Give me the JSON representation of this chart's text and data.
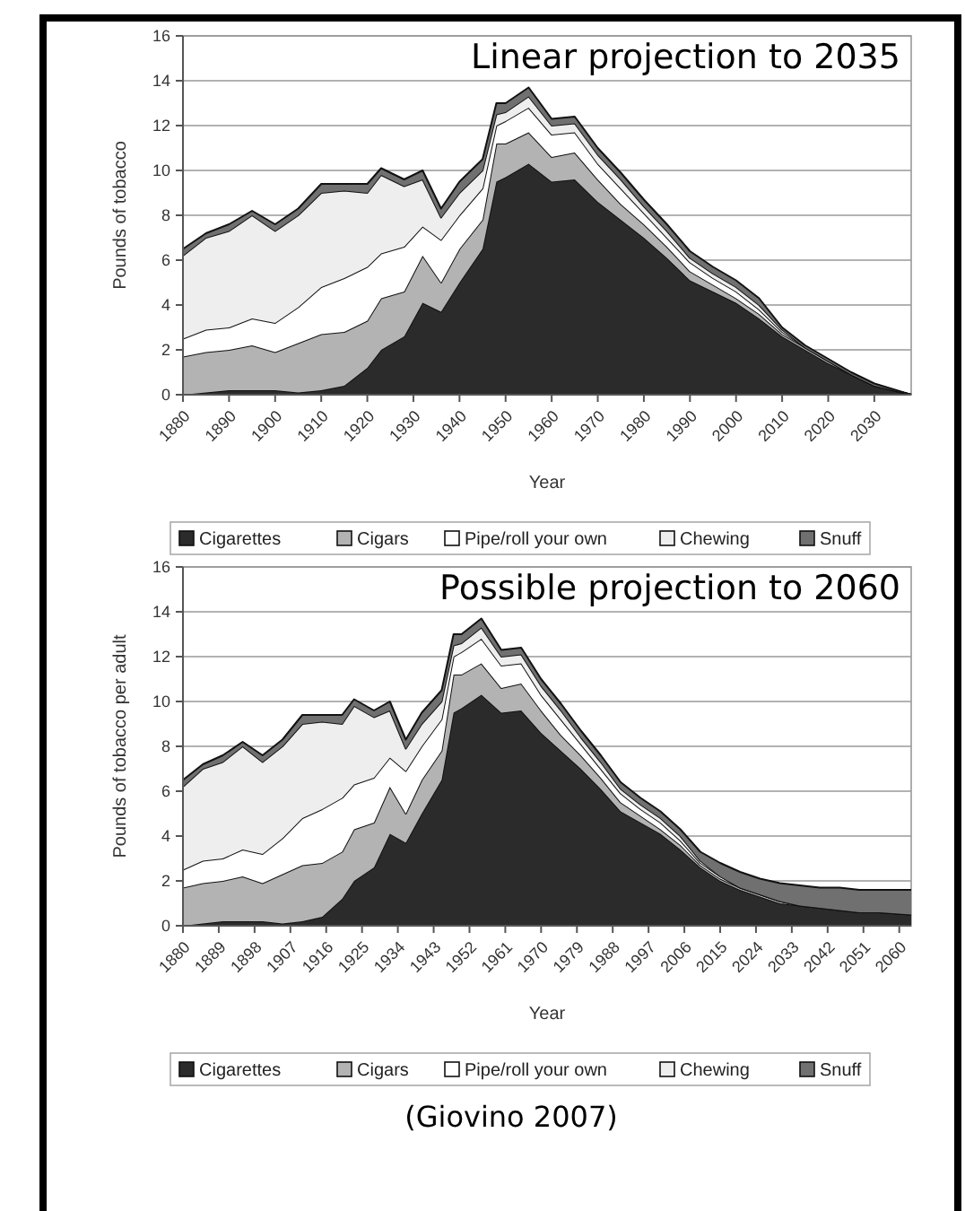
{
  "chart_data": [
    {
      "type": "area",
      "stacked": true,
      "title": "Linear projection to 2035",
      "xlabel": "Year",
      "ylabel": "Pounds of tobacco",
      "legend": "bottom",
      "grid": "y",
      "xlim": [
        1880,
        2038
      ],
      "ylim": [
        0,
        16
      ],
      "xticks": [
        1880,
        1890,
        1900,
        1910,
        1920,
        1930,
        1940,
        1950,
        1960,
        1970,
        1980,
        1990,
        2000,
        2010,
        2020,
        2030
      ],
      "yticks": [
        0,
        2,
        4,
        6,
        8,
        10,
        12,
        14,
        16
      ],
      "x": [
        1880,
        1885,
        1890,
        1895,
        1900,
        1905,
        1910,
        1915,
        1920,
        1923,
        1928,
        1932,
        1936,
        1940,
        1945,
        1948,
        1950,
        1955,
        1960,
        1965,
        1970,
        1975,
        1980,
        1985,
        1990,
        1995,
        2000,
        2005,
        2010,
        2015,
        2020,
        2025,
        2030,
        2038
      ],
      "series": [
        {
          "name": "Cigarettes",
          "color": "#2b2b2b",
          "values": [
            0,
            0.1,
            0.2,
            0.2,
            0.2,
            0.1,
            0.2,
            0.4,
            1.2,
            2.0,
            2.6,
            4.1,
            3.7,
            5.0,
            6.5,
            9.5,
            9.7,
            10.3,
            9.5,
            9.6,
            8.6,
            7.8,
            7.0,
            6.1,
            5.1,
            4.6,
            4.1,
            3.4,
            2.6,
            2.0,
            1.4,
            0.9,
            0.4,
            0
          ]
        },
        {
          "name": "Cigars",
          "color": "#b3b3b3",
          "values": [
            1.7,
            1.8,
            1.8,
            2.0,
            1.7,
            2.2,
            2.5,
            2.4,
            2.1,
            2.3,
            2.0,
            2.1,
            1.3,
            1.5,
            1.3,
            1.7,
            1.5,
            1.4,
            1.1,
            1.2,
            1.0,
            0.7,
            0.6,
            0.5,
            0.4,
            0.3,
            0.2,
            0.2,
            0.1,
            0.1,
            0.1,
            0,
            0,
            0
          ]
        },
        {
          "name": "Pipe/roll your own",
          "color": "#ffffff",
          "values": [
            0.8,
            1.0,
            1.0,
            1.2,
            1.3,
            1.6,
            2.1,
            2.4,
            2.4,
            2.0,
            2.0,
            1.3,
            1.9,
            1.5,
            1.4,
            0.8,
            1.0,
            1.1,
            1.0,
            0.9,
            0.7,
            0.7,
            0.5,
            0.4,
            0.4,
            0.3,
            0.3,
            0.2,
            0.1,
            0,
            0,
            0,
            0,
            0
          ]
        },
        {
          "name": "Chewing",
          "color": "#eeeeee",
          "values": [
            3.7,
            4.1,
            4.3,
            4.6,
            4.1,
            4.1,
            4.2,
            3.9,
            3.3,
            3.5,
            2.7,
            2.1,
            1.0,
            1.0,
            0.8,
            0.5,
            0.4,
            0.5,
            0.4,
            0.4,
            0.4,
            0.4,
            0.3,
            0.3,
            0.2,
            0.2,
            0.2,
            0.2,
            0.1,
            0,
            0,
            0,
            0,
            0
          ]
        },
        {
          "name": "Snuff",
          "color": "#707070",
          "values": [
            0.3,
            0.2,
            0.3,
            0.2,
            0.3,
            0.3,
            0.4,
            0.3,
            0.4,
            0.3,
            0.3,
            0.4,
            0.4,
            0.5,
            0.5,
            0.5,
            0.4,
            0.4,
            0.3,
            0.3,
            0.3,
            0.3,
            0.3,
            0.3,
            0.3,
            0.3,
            0.3,
            0.3,
            0.1,
            0.1,
            0.1,
            0.1,
            0.1,
            0
          ]
        }
      ]
    },
    {
      "type": "area",
      "stacked": true,
      "title": "Possible projection to 2060",
      "xlabel": "Year",
      "ylabel": "Pounds of tobacco per adult",
      "legend": "bottom",
      "grid": "y",
      "xlim": [
        1880,
        2063
      ],
      "ylim": [
        0,
        16
      ],
      "xticks": [
        1880,
        1889,
        1898,
        1907,
        1916,
        1925,
        1934,
        1943,
        1952,
        1961,
        1970,
        1979,
        1988,
        1997,
        2006,
        2015,
        2024,
        2033,
        2042,
        2051,
        2060
      ],
      "yticks": [
        0,
        2,
        4,
        6,
        8,
        10,
        12,
        14,
        16
      ],
      "annotations": [
        "(Giovino 2007)"
      ],
      "x": [
        1880,
        1885,
        1890,
        1895,
        1900,
        1905,
        1910,
        1915,
        1920,
        1923,
        1928,
        1932,
        1936,
        1940,
        1945,
        1948,
        1950,
        1955,
        1960,
        1965,
        1970,
        1975,
        1980,
        1985,
        1990,
        1995,
        2000,
        2005,
        2010,
        2015,
        2020,
        2025,
        2030,
        2035,
        2040,
        2045,
        2050,
        2055,
        2063
      ],
      "series": [
        {
          "name": "Cigarettes",
          "color": "#2b2b2b",
          "values": [
            0,
            0.1,
            0.2,
            0.2,
            0.2,
            0.1,
            0.2,
            0.4,
            1.2,
            2.0,
            2.6,
            4.1,
            3.7,
            5.0,
            6.5,
            9.5,
            9.7,
            10.3,
            9.5,
            9.6,
            8.6,
            7.8,
            7.0,
            6.1,
            5.1,
            4.6,
            4.1,
            3.4,
            2.6,
            2.0,
            1.6,
            1.3,
            1.0,
            0.9,
            0.8,
            0.7,
            0.6,
            0.6,
            0.5
          ]
        },
        {
          "name": "Cigars",
          "color": "#b3b3b3",
          "values": [
            1.7,
            1.8,
            1.8,
            2.0,
            1.7,
            2.2,
            2.5,
            2.4,
            2.1,
            2.3,
            2.0,
            2.1,
            1.3,
            1.5,
            1.3,
            1.7,
            1.5,
            1.4,
            1.1,
            1.2,
            1.0,
            0.7,
            0.6,
            0.5,
            0.4,
            0.3,
            0.2,
            0.2,
            0.1,
            0.1,
            0.1,
            0.1,
            0.1,
            0,
            0,
            0,
            0,
            0,
            0
          ]
        },
        {
          "name": "Pipe/roll your own",
          "color": "#ffffff",
          "values": [
            0.8,
            1.0,
            1.0,
            1.2,
            1.3,
            1.6,
            2.1,
            2.4,
            2.4,
            2.0,
            2.0,
            1.3,
            1.9,
            1.5,
            1.4,
            0.8,
            1.0,
            1.1,
            1.0,
            0.9,
            0.7,
            0.7,
            0.5,
            0.4,
            0.4,
            0.3,
            0.3,
            0.2,
            0.1,
            0.1,
            0,
            0,
            0,
            0,
            0,
            0,
            0,
            0,
            0
          ]
        },
        {
          "name": "Chewing",
          "color": "#eeeeee",
          "values": [
            3.7,
            4.1,
            4.3,
            4.6,
            4.1,
            4.1,
            4.2,
            3.9,
            3.3,
            3.5,
            2.7,
            2.1,
            1.0,
            1.0,
            0.8,
            0.5,
            0.4,
            0.5,
            0.4,
            0.4,
            0.4,
            0.4,
            0.3,
            0.3,
            0.2,
            0.2,
            0.2,
            0.2,
            0.1,
            0,
            0,
            0,
            0,
            0,
            0,
            0,
            0,
            0,
            0
          ]
        },
        {
          "name": "Snuff",
          "color": "#707070",
          "values": [
            0.3,
            0.2,
            0.3,
            0.2,
            0.3,
            0.3,
            0.4,
            0.3,
            0.4,
            0.3,
            0.3,
            0.4,
            0.4,
            0.5,
            0.5,
            0.5,
            0.4,
            0.4,
            0.3,
            0.3,
            0.3,
            0.3,
            0.3,
            0.3,
            0.3,
            0.3,
            0.3,
            0.3,
            0.4,
            0.6,
            0.7,
            0.7,
            0.8,
            0.9,
            0.9,
            1.0,
            1.0,
            1.0,
            1.1
          ]
        }
      ]
    }
  ]
}
